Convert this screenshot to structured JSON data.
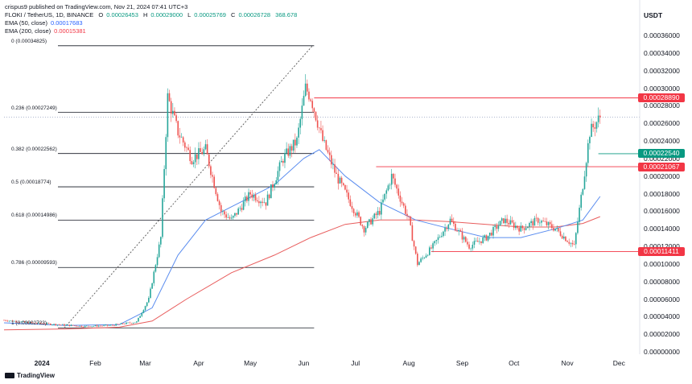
{
  "header": {
    "publisher": "crispus9 published on TradingView.com, Nov 21, 2024 07:41 UTC+3",
    "symbol_line": "FLOKI / TetherUS, 1D, BINANCE",
    "ohlc": {
      "o_label": "O",
      "o": "0.00026453",
      "h_label": "H",
      "h": "0.00029000",
      "l_label": "L",
      "l": "0.00025769",
      "c_label": "C",
      "c": "0.00026728",
      "vol": "368.678"
    },
    "ema50": {
      "label": "EMA (50, close)",
      "value": "0.00017683"
    },
    "ema200": {
      "label": "EMA (200, close)",
      "value": "0.00015381"
    }
  },
  "currency": "USDT",
  "logo_text": "TradingView",
  "colors": {
    "up": "#26a69a",
    "down": "#ef5350",
    "ema50": "#5b8def",
    "ema200": "#e85d5d",
    "level": "#f23645",
    "green_badge": "#089981",
    "fib": "#131722"
  },
  "chart_data": {
    "type": "candlestick",
    "x_labels": [
      "2024",
      "Feb",
      "Mar",
      "Apr",
      "May",
      "Jun",
      "Jul",
      "Aug",
      "Sep",
      "Oct",
      "Nov",
      "Dec"
    ],
    "y_ticks": [
      "0.00036000",
      "0.00034000",
      "0.00032000",
      "0.00030000",
      "0.00028000",
      "0.00026000",
      "0.00024000",
      "0.00022000",
      "0.00020000",
      "0.00018000",
      "0.00016000",
      "0.00014000",
      "0.00012000",
      "0.00010000",
      "0.00008000",
      "0.00006000",
      "0.00004000",
      "0.00002000",
      "0.00000000"
    ],
    "ylim": [
      0,
      0.00037
    ],
    "fib_levels": [
      {
        "label": "0 (0.00034825)",
        "value": 0.00034825
      },
      {
        "label": "0.236 (0.00027249)",
        "value": 0.00027249
      },
      {
        "label": "0.382 (0.00022562)",
        "value": 0.00022562
      },
      {
        "label": "0.5 (0.00018774)",
        "value": 0.00018774
      },
      {
        "label": "0.618 (0.00014986)",
        "value": 0.00014986
      },
      {
        "label": "0.786 (0.00009593)",
        "value": 9.593e-05
      },
      {
        "label": "1 (0.00002723)",
        "value": 2.723e-05
      }
    ],
    "price_levels": [
      {
        "label": "0.00028890",
        "value": 0.0002889,
        "kind": "resistance"
      },
      {
        "label": "0.00022540",
        "value": 0.0002254,
        "kind": "current"
      },
      {
        "label": "0.00021067",
        "value": 0.00021067,
        "kind": "resistance"
      },
      {
        "label": "0.00011411",
        "value": 0.00011411,
        "kind": "support"
      }
    ],
    "series": [
      {
        "name": "FLOKI / TetherUS",
        "kind": "close_path",
        "x_dates": [
          "2023-12-10",
          "2023-12-25",
          "2024-01-10",
          "2024-01-25",
          "2024-02-10",
          "2024-02-25",
          "2024-03-03",
          "2024-03-10",
          "2024-03-14",
          "2024-03-20",
          "2024-03-28",
          "2024-04-05",
          "2024-04-14",
          "2024-04-20",
          "2024-05-01",
          "2024-05-10",
          "2024-05-20",
          "2024-05-28",
          "2024-06-02",
          "2024-06-05",
          "2024-06-12",
          "2024-06-20",
          "2024-06-28",
          "2024-07-06",
          "2024-07-15",
          "2024-07-22",
          "2024-08-01",
          "2024-08-06",
          "2024-08-15",
          "2024-08-25",
          "2024-09-05",
          "2024-09-15",
          "2024-09-25",
          "2024-10-05",
          "2024-10-15",
          "2024-10-25",
          "2024-11-05",
          "2024-11-10",
          "2024-11-14",
          "2024-11-20"
        ],
        "values": [
          3.6e-05,
          3.3e-05,
          3.1e-05,
          2.9e-05,
          3e-05,
          3.4e-05,
          6e-05,
          0.00013,
          0.00029,
          0.00025,
          0.00022,
          0.00023,
          0.00016,
          0.00015,
          0.00018,
          0.00017,
          0.00022,
          0.00024,
          0.0003,
          0.00029,
          0.00024,
          0.0002,
          0.00017,
          0.00014,
          0.00016,
          0.0002,
          0.00015,
          0.0001,
          0.00012,
          0.00015,
          0.00012,
          0.00013,
          0.00015,
          0.00014,
          0.00015,
          0.00014,
          0.00012,
          0.00019,
          0.00025,
          0.00026728
        ]
      },
      {
        "name": "EMA (50, close)",
        "x_dates": [
          "2023-12-10",
          "2024-01-15",
          "2024-02-15",
          "2024-03-05",
          "2024-03-20",
          "2024-04-05",
          "2024-04-25",
          "2024-05-15",
          "2024-06-01",
          "2024-06-10",
          "2024-06-25",
          "2024-07-15",
          "2024-08-05",
          "2024-08-25",
          "2024-09-15",
          "2024-10-05",
          "2024-10-25",
          "2024-11-10",
          "2024-11-20"
        ],
        "values": [
          3.3e-05,
          3e-05,
          3.1e-05,
          5e-05,
          0.00011,
          0.00015,
          0.00017,
          0.00019,
          0.00022,
          0.00023,
          0.0002,
          0.00017,
          0.00015,
          0.00014,
          0.00013,
          0.00013,
          0.00014,
          0.00015,
          0.00017683
        ]
      },
      {
        "name": "EMA (200, close)",
        "x_dates": [
          "2023-12-10",
          "2024-01-15",
          "2024-02-15",
          "2024-03-05",
          "2024-03-25",
          "2024-04-20",
          "2024-05-15",
          "2024-06-05",
          "2024-06-25",
          "2024-07-15",
          "2024-08-05",
          "2024-08-25",
          "2024-09-15",
          "2024-10-05",
          "2024-10-25",
          "2024-11-10",
          "2024-11-20"
        ],
        "values": [
          2.5e-05,
          2.6e-05,
          2.8e-05,
          3.5e-05,
          6e-05,
          9e-05,
          0.00011,
          0.00013,
          0.000145,
          0.00015,
          0.00015,
          0.000148,
          0.000145,
          0.000142,
          0.000142,
          0.000146,
          0.00015381
        ]
      }
    ]
  }
}
